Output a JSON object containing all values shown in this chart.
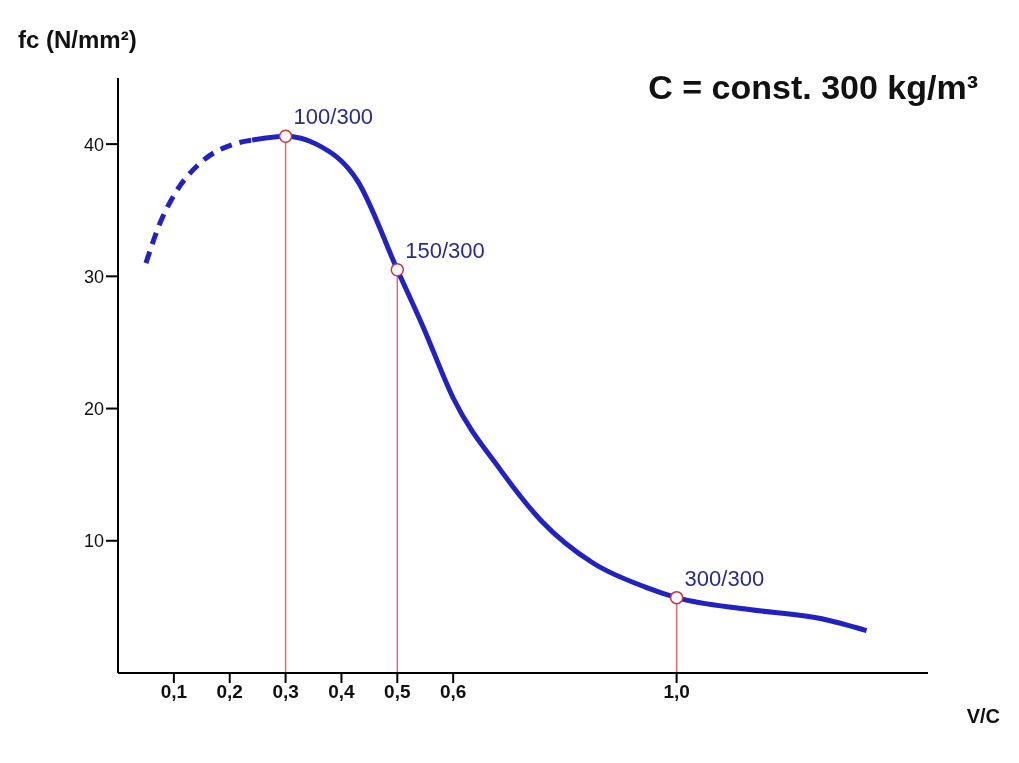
{
  "chart_data": {
    "type": "line",
    "title": "C = const. 300 kg/m³",
    "ylabel": "fc (N/mm²)",
    "xlabel": "V/C",
    "xlim": [
      0,
      1.45
    ],
    "ylim": [
      0,
      45
    ],
    "xticks": [
      {
        "value": 0.1,
        "label": "0,1"
      },
      {
        "value": 0.2,
        "label": "0,2"
      },
      {
        "value": 0.3,
        "label": "0,3"
      },
      {
        "value": 0.4,
        "label": "0,4"
      },
      {
        "value": 0.5,
        "label": "0,5"
      },
      {
        "value": 0.6,
        "label": "0,6"
      },
      {
        "value": 1.0,
        "label": "1,0"
      }
    ],
    "yticks": [
      10,
      20,
      30,
      40
    ],
    "grid": false,
    "series": [
      {
        "line_style": "dashed",
        "color": "#2222c0",
        "x": [
          0.05,
          0.074,
          0.104,
          0.148,
          0.207,
          0.24
        ],
        "values": [
          31.0,
          33.9,
          36.4,
          38.6,
          40.0,
          40.3
        ]
      },
      {
        "line_style": "solid",
        "color": "#2222c0",
        "x": [
          0.24,
          0.3,
          0.355,
          0.429,
          0.5,
          0.547,
          0.6,
          0.684,
          0.758,
          0.851,
          0.944,
          1.0,
          1.13,
          1.26,
          1.34
        ],
        "values": [
          40.3,
          40.6,
          40.0,
          37.2,
          30.5,
          26.1,
          20.8,
          15.4,
          11.5,
          8.3,
          6.5,
          5.7,
          4.8,
          4.1,
          3.2
        ]
      },
      {
        "type": "scatter",
        "marker": "circle",
        "color": "#d03040",
        "x": [
          0.3,
          0.5,
          1.0
        ],
        "values": [
          40.6,
          30.5,
          5.7
        ]
      }
    ],
    "ref_lines": [
      {
        "axis": "x",
        "value": 0.3,
        "color": "#e06878"
      },
      {
        "axis": "x",
        "value": 0.5,
        "color": "#e06878"
      },
      {
        "axis": "x",
        "value": 1.0,
        "color": "#e06878"
      }
    ],
    "annotations": [
      {
        "text": "100/300",
        "x": 0.3,
        "y": 40.6
      },
      {
        "text": "150/300",
        "x": 0.5,
        "y": 30.5
      },
      {
        "text": "300/300",
        "x": 1.0,
        "y": 5.7
      }
    ]
  }
}
